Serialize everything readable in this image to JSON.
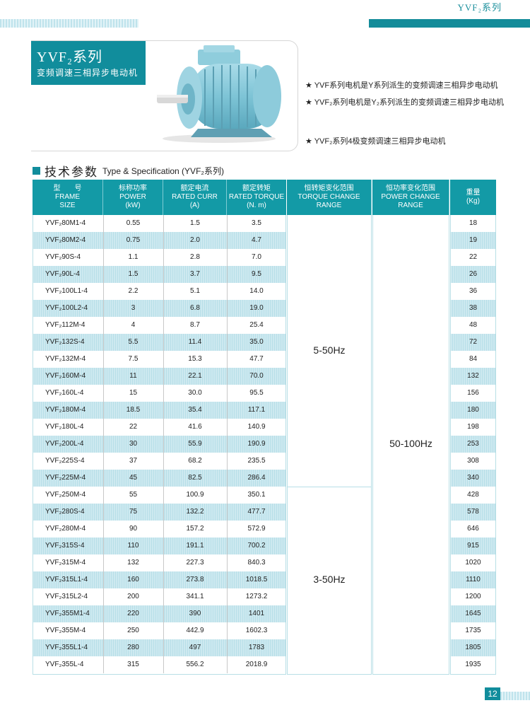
{
  "header": {
    "series_top": "YVF₂系列"
  },
  "hero": {
    "title": "YVF₂系列",
    "subtitle": "变频调速三相异步电动机",
    "bullets": [
      "YVF系列电机是Y系列派生的变频调速三相异步电动机",
      "YVF₂系列电机是Y₂系列派生的变频调速三相异步电动机",
      "YVF₂系列4极变频调速三相异步电动机"
    ]
  },
  "spec": {
    "title_cn": "技术参数",
    "title_en": "Type & Specification (YVF₂系列)"
  },
  "table": {
    "columns": [
      [
        "型　　号",
        "FRAME",
        "SIZE"
      ],
      [
        "标称功率",
        "POWER",
        "(kW)"
      ],
      [
        "额定电流",
        "RATED CURR",
        "(A)"
      ],
      [
        "额定转矩",
        "RATED TORQUE",
        "(N. m)"
      ],
      [
        "恒转矩变化范围",
        "TORQUE CHANGE",
        "RANGE"
      ],
      [
        "恒功率变化范围",
        "POWER CHANGE",
        "RANGE"
      ],
      [
        "重量",
        "(Kg)",
        ""
      ]
    ],
    "torque_ranges": [
      "5-50Hz",
      "3-50Hz"
    ],
    "power_range": "50-100Hz",
    "rows": [
      {
        "frame": "YVF₂80M1-4",
        "power": "0.55",
        "curr": "1.5",
        "torque": "3.5",
        "weight": "18"
      },
      {
        "frame": "YVF₂80M2-4",
        "power": "0.75",
        "curr": "2.0",
        "torque": "4.7",
        "weight": "19"
      },
      {
        "frame": "YVF₂90S-4",
        "power": "1.1",
        "curr": "2.8",
        "torque": "7.0",
        "weight": "22"
      },
      {
        "frame": "YVF₂90L-4",
        "power": "1.5",
        "curr": "3.7",
        "torque": "9.5",
        "weight": "26"
      },
      {
        "frame": "YVF₂100L1-4",
        "power": "2.2",
        "curr": "5.1",
        "torque": "14.0",
        "weight": "36"
      },
      {
        "frame": "YVF₂100L2-4",
        "power": "3",
        "curr": "6.8",
        "torque": "19.0",
        "weight": "38"
      },
      {
        "frame": "YVF₂112M-4",
        "power": "4",
        "curr": "8.7",
        "torque": "25.4",
        "weight": "48"
      },
      {
        "frame": "YVF₂132S-4",
        "power": "5.5",
        "curr": "11.4",
        "torque": "35.0",
        "weight": "72"
      },
      {
        "frame": "YVF₂132M-4",
        "power": "7.5",
        "curr": "15.3",
        "torque": "47.7",
        "weight": "84"
      },
      {
        "frame": "YVF₂160M-4",
        "power": "11",
        "curr": "22.1",
        "torque": "70.0",
        "weight": "132"
      },
      {
        "frame": "YVF₂160L-4",
        "power": "15",
        "curr": "30.0",
        "torque": "95.5",
        "weight": "156"
      },
      {
        "frame": "YVF₂180M-4",
        "power": "18.5",
        "curr": "35.4",
        "torque": "117.1",
        "weight": "180"
      },
      {
        "frame": "YVF₂180L-4",
        "power": "22",
        "curr": "41.6",
        "torque": "140.9",
        "weight": "198"
      },
      {
        "frame": "YVF₂200L-4",
        "power": "30",
        "curr": "55.9",
        "torque": "190.9",
        "weight": "253"
      },
      {
        "frame": "YVF₂225S-4",
        "power": "37",
        "curr": "68.2",
        "torque": "235.5",
        "weight": "308"
      },
      {
        "frame": "YVF₂225M-4",
        "power": "45",
        "curr": "82.5",
        "torque": "286.4",
        "weight": "340"
      },
      {
        "frame": "YVF₂250M-4",
        "power": "55",
        "curr": "100.9",
        "torque": "350.1",
        "weight": "428"
      },
      {
        "frame": "YVF₂280S-4",
        "power": "75",
        "curr": "132.2",
        "torque": "477.7",
        "weight": "578"
      },
      {
        "frame": "YVF₂280M-4",
        "power": "90",
        "curr": "157.2",
        "torque": "572.9",
        "weight": "646"
      },
      {
        "frame": "YVF₂315S-4",
        "power": "110",
        "curr": "191.1",
        "torque": "700.2",
        "weight": "915"
      },
      {
        "frame": "YVF₂315M-4",
        "power": "132",
        "curr": "227.3",
        "torque": "840.3",
        "weight": "1020"
      },
      {
        "frame": "YVF₂315L1-4",
        "power": "160",
        "curr": "273.8",
        "torque": "1018.5",
        "weight": "1110"
      },
      {
        "frame": "YVF₂315L2-4",
        "power": "200",
        "curr": "341.1",
        "torque": "1273.2",
        "weight": "1200"
      },
      {
        "frame": "YVF₂355M1-4",
        "power": "220",
        "curr": "390",
        "torque": "1401",
        "weight": "1645"
      },
      {
        "frame": "YVF₂355M-4",
        "power": "250",
        "curr": "442.9",
        "torque": "1602.3",
        "weight": "1735"
      },
      {
        "frame": "YVF₂355L1-4",
        "power": "280",
        "curr": "497",
        "torque": "1783",
        "weight": "1805"
      },
      {
        "frame": "YVF₂355L-4",
        "power": "315",
        "curr": "556.2",
        "torque": "2018.9",
        "weight": "1935"
      }
    ]
  },
  "footer": {
    "page_number": "12"
  },
  "colors": {
    "accent": "#139aa6",
    "row_alt": "#c4e5ec"
  }
}
